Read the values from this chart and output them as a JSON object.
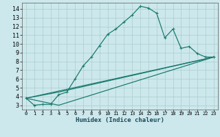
{
  "xlabel": "Humidex (Indice chaleur)",
  "bg_color": "#cce8ec",
  "grid_color": "#aacccc",
  "line_color": "#1a7a6e",
  "xlim": [
    -0.5,
    23.5
  ],
  "ylim": [
    2.5,
    14.7
  ],
  "xticks": [
    0,
    1,
    2,
    3,
    4,
    5,
    6,
    7,
    8,
    9,
    10,
    11,
    12,
    13,
    14,
    15,
    16,
    17,
    18,
    19,
    20,
    21,
    22,
    23
  ],
  "yticks": [
    3,
    4,
    5,
    6,
    7,
    8,
    9,
    10,
    11,
    12,
    13,
    14
  ],
  "line1_x": [
    0,
    1,
    2,
    3,
    4,
    5,
    6,
    7,
    8,
    9,
    10,
    11,
    12,
    13,
    14,
    15,
    16,
    17,
    18,
    19,
    20,
    21,
    22,
    23
  ],
  "line1_y": [
    3.8,
    3.0,
    3.1,
    3.1,
    4.2,
    4.5,
    6.0,
    7.5,
    8.5,
    9.8,
    11.1,
    11.7,
    12.5,
    13.3,
    14.3,
    14.1,
    13.5,
    10.7,
    11.7,
    9.5,
    9.7,
    8.9,
    8.5,
    8.5
  ],
  "line2_x": [
    0,
    4,
    23
  ],
  "line2_y": [
    3.8,
    3.0,
    8.5
  ],
  "line3_x": [
    0,
    4,
    23
  ],
  "line3_y": [
    3.8,
    4.5,
    8.5
  ],
  "line4_x": [
    0,
    23
  ],
  "line4_y": [
    3.8,
    8.5
  ],
  "marker": "+"
}
